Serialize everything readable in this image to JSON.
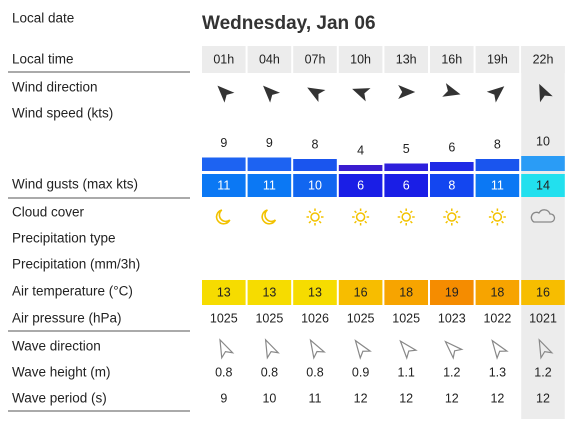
{
  "header": {
    "date_label": "Local date",
    "date": "Wednesday, Jan 06"
  },
  "row_labels": {
    "time": "Local time",
    "wind_direction": "Wind direction",
    "wind_speed": "Wind speed (kts)",
    "wind_gusts": "Wind gusts (max kts)",
    "cloud_cover": "Cloud cover",
    "precipitation_type": "Precipitation type",
    "precipitation": "Precipitation (mm/3h)",
    "air_temperature": "Air temperature (°C)",
    "air_pressure": "Air pressure (hPa)",
    "wave_direction": "Wave direction",
    "wave_height": "Wave height (m)",
    "wave_period": "Wave period (s)"
  },
  "columns": [
    {
      "time": "01h",
      "wind_speed": 9,
      "speed_color": "#1d63f2",
      "wind_gust": 11,
      "gust_color": "#0b78f4",
      "temperature": 13,
      "temp_color": "#f6dc00",
      "pressure": 1025,
      "wave_height": 0.8,
      "wave_period": 9
    },
    {
      "time": "04h",
      "wind_speed": 9,
      "speed_color": "#1d63f2",
      "wind_gust": 11,
      "gust_color": "#0b78f4",
      "temperature": 13,
      "temp_color": "#f6dc00",
      "pressure": 1025,
      "wave_height": 0.8,
      "wave_period": 10
    },
    {
      "time": "07h",
      "wind_speed": 8,
      "speed_color": "#1a55ee",
      "wind_gust": 10,
      "gust_color": "#1166f0",
      "temperature": 13,
      "temp_color": "#f6dc00",
      "pressure": 1026,
      "wave_height": 0.8,
      "wave_period": 11
    },
    {
      "time": "10h",
      "wind_speed": 4,
      "speed_color": "#3a1ccf",
      "wind_gust": 6,
      "gust_color": "#1a1ee6",
      "temperature": 16,
      "temp_color": "#f7bd00",
      "pressure": 1025,
      "wave_height": 0.9,
      "wave_period": 12
    },
    {
      "time": "13h",
      "wind_speed": 5,
      "speed_color": "#2d1fdc",
      "wind_gust": 6,
      "gust_color": "#1a1ee6",
      "temperature": 18,
      "temp_color": "#f7a400",
      "pressure": 1025,
      "wave_height": 1.1,
      "wave_period": 12
    },
    {
      "time": "16h",
      "wind_speed": 6,
      "speed_color": "#1f2ae6",
      "wind_gust": 8,
      "gust_color": "#1346f0",
      "temperature": 19,
      "temp_color": "#f58c00",
      "pressure": 1023,
      "wave_height": 1.2,
      "wave_period": 12
    },
    {
      "time": "19h",
      "wind_speed": 8,
      "speed_color": "#1a55ee",
      "wind_gust": 11,
      "gust_color": "#0b78f4",
      "temperature": 18,
      "temp_color": "#f7a400",
      "pressure": 1022,
      "wave_height": 1.3,
      "wave_period": 12
    },
    {
      "time": "22h",
      "wind_speed": 10,
      "speed_color": "#2a9cf6",
      "wind_gust": 14,
      "gust_color": "#22e0ee",
      "temperature": 16,
      "temp_color": "#f7bd00",
      "pressure": 1021,
      "wave_height": 1.2,
      "wave_period": 12
    }
  ]
}
